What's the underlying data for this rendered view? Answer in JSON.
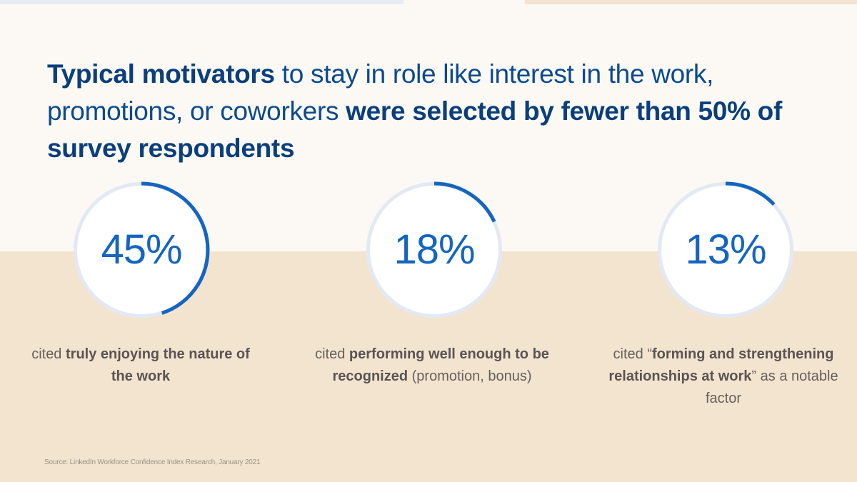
{
  "headline": {
    "bold1": "Typical motivators",
    "regular1": " to stay in role like interest in the work, promotions, or coworkers ",
    "bold2": "were selected by fewer than 50% of survey respondents"
  },
  "chart_data": {
    "type": "donut",
    "items": [
      {
        "label": "45%",
        "percent": 45,
        "caption": {
          "pre": "cited ",
          "bold": "truly enjoying the nature of the work",
          "post": ""
        }
      },
      {
        "label": "18%",
        "percent": 18,
        "caption": {
          "pre": "cited ",
          "bold": "performing well enough to be recognized",
          "post": " (promotion, bonus)"
        }
      },
      {
        "label": "13%",
        "percent": 13,
        "caption": {
          "pre": "cited “",
          "bold": "forming and strengthening relationships at work",
          "post": "” as a notable factor"
        }
      }
    ],
    "colors": {
      "arc": "#1565c0",
      "track": "#e3e9f4",
      "inner": "#ffffff"
    }
  },
  "source": "Source: LinkedIn Workforce Confidence Index Research, January 2021"
}
